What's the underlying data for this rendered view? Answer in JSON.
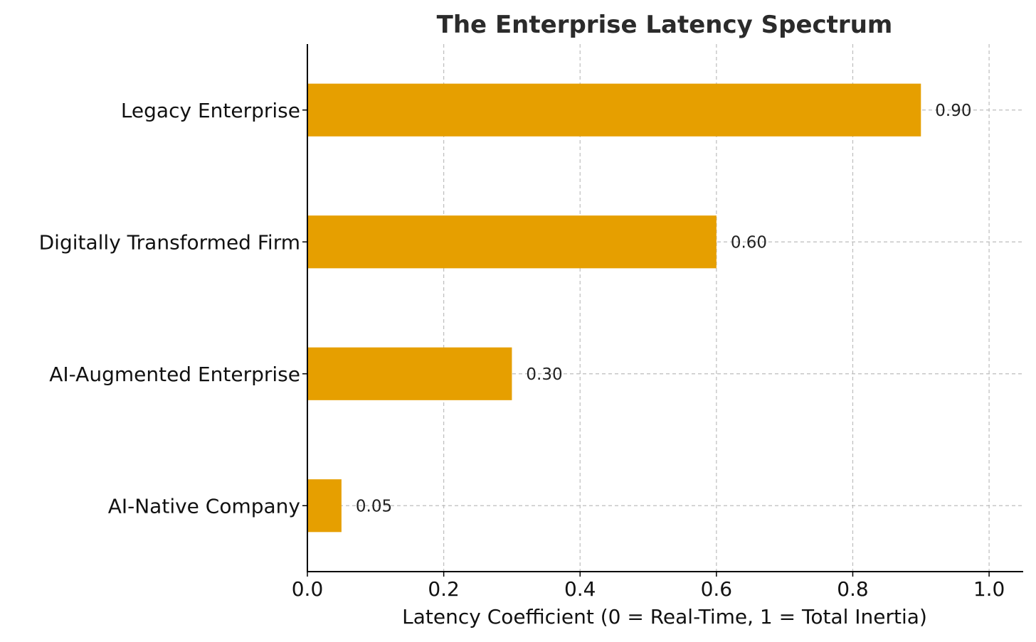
{
  "chart_data": {
    "type": "bar",
    "orientation": "horizontal",
    "title": "The Enterprise Latency Spectrum",
    "xlabel": "Latency Coefficient (0 = Real-Time, 1 = Total Inertia)",
    "ylabel": "",
    "categories": [
      "Legacy Enterprise",
      "Digitally Transformed Firm",
      "AI-Augmented Enterprise",
      "AI-Native Company"
    ],
    "values": [
      0.9,
      0.6,
      0.3,
      0.05
    ],
    "value_labels": [
      "0.90",
      "0.60",
      "0.30",
      "0.05"
    ],
    "xlim": [
      0,
      1.05
    ],
    "xticks": [
      0.0,
      0.2,
      0.4,
      0.6,
      0.8,
      1.0
    ],
    "xtick_labels": [
      "0.0",
      "0.2",
      "0.4",
      "0.6",
      "0.8",
      "1.0"
    ],
    "grid": true,
    "bar_color": "#E69F00"
  }
}
